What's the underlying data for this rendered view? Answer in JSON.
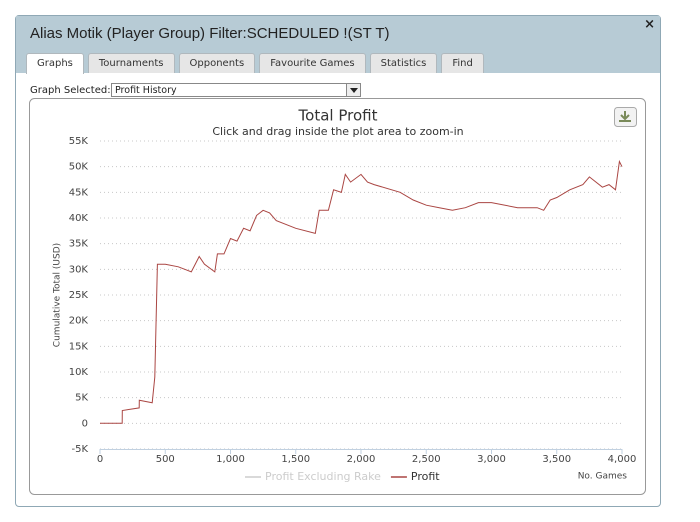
{
  "window": {
    "title": "Alias Motik (Player Group) Filter:SCHEDULED !(ST T)",
    "close": "×"
  },
  "tabs": [
    {
      "label": "Graphs",
      "active": true
    },
    {
      "label": "Tournaments",
      "active": false
    },
    {
      "label": "Opponents",
      "active": false
    },
    {
      "label": "Favourite Games",
      "active": false
    },
    {
      "label": "Statistics",
      "active": false
    },
    {
      "label": "Find",
      "active": false
    }
  ],
  "graph_selector": {
    "label": "Graph Selected:",
    "value": "Profit History"
  },
  "chart_data": {
    "type": "line",
    "title": "Total Profit",
    "subtitle": "Click and drag inside the plot area to zoom-in",
    "x_label": "No. Games",
    "y_label": "Cumulative Total (USD)",
    "x": [
      0,
      100,
      170,
      171,
      300,
      301,
      400,
      420,
      440,
      500,
      600,
      650,
      700,
      760,
      800,
      880,
      900,
      950,
      1000,
      1050,
      1100,
      1150,
      1200,
      1250,
      1300,
      1350,
      1500,
      1650,
      1680,
      1750,
      1790,
      1850,
      1880,
      1920,
      2000,
      2050,
      2100,
      2300,
      2400,
      2500,
      2600,
      2700,
      2800,
      2900,
      3000,
      3200,
      3350,
      3400,
      3450,
      3500,
      3600,
      3700,
      3750,
      3850,
      3900,
      3950,
      3980,
      4000
    ],
    "series": [
      {
        "name": "Profit Excluding Rake",
        "color": "#cccccc",
        "visible": false
      },
      {
        "name": "Profit",
        "color": "#aa4643",
        "visible": true,
        "values": [
          0,
          0,
          0,
          2500,
          3000,
          4500,
          4000,
          9000,
          31000,
          31000,
          30500,
          30000,
          29500,
          32500,
          31000,
          29500,
          33000,
          33000,
          36000,
          35500,
          38000,
          37500,
          40500,
          41500,
          41000,
          39500,
          38000,
          37000,
          41500,
          41500,
          45500,
          45000,
          48500,
          47000,
          48500,
          47000,
          46500,
          45000,
          43500,
          42500,
          42000,
          41500,
          42000,
          43000,
          43000,
          42000,
          42000,
          41500,
          43500,
          44000,
          45500,
          46500,
          48000,
          46000,
          46500,
          45500,
          51000,
          50000
        ]
      }
    ],
    "xlim": [
      0,
      4000
    ],
    "xticks": [
      0,
      500,
      {
        "value": 1000,
        "label": "1,000"
      },
      {
        "value": 1500,
        "label": "1,500"
      },
      {
        "value": 2000,
        "label": "2,000"
      },
      {
        "value": 2500,
        "label": "2,500"
      },
      {
        "value": 3000,
        "label": "3,000"
      },
      {
        "value": 3500,
        "label": "3,500"
      },
      {
        "value": 4000,
        "label": "4,000"
      }
    ],
    "ylim": [
      -5000,
      55000
    ],
    "yticks": [
      {
        "value": -5000,
        "label": "-5K"
      },
      0,
      {
        "value": 5000,
        "label": "5K"
      },
      {
        "value": 10000,
        "label": "10K"
      },
      {
        "value": 15000,
        "label": "15K"
      },
      {
        "value": 20000,
        "label": "20K"
      },
      {
        "value": 25000,
        "label": "25K"
      },
      {
        "value": 30000,
        "label": "30K"
      },
      {
        "value": 35000,
        "label": "35K"
      },
      {
        "value": 40000,
        "label": "40K"
      },
      {
        "value": 45000,
        "label": "45K"
      },
      {
        "value": 50000,
        "label": "50K"
      },
      {
        "value": 55000,
        "label": "55K"
      }
    ],
    "grid": true
  }
}
